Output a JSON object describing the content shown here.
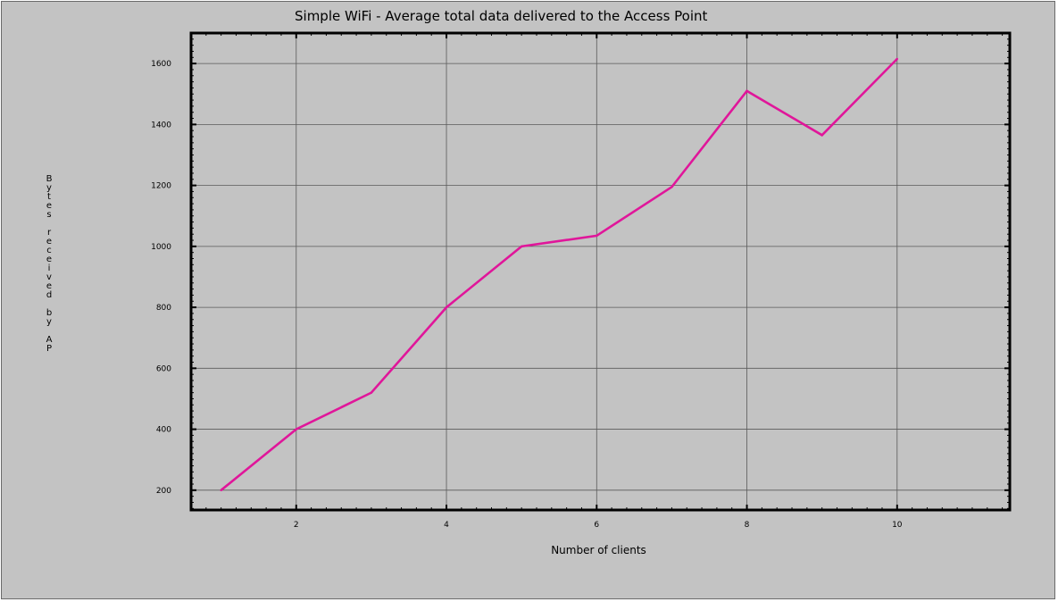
{
  "chart_data": {
    "type": "line",
    "title": "Simple WiFi - Average total data delivered to the Access Point",
    "xlabel": "Number of clients",
    "ylabel": "Bytes received by AP",
    "xlim": [
      0.6,
      11.5
    ],
    "ylim": [
      135,
      1700
    ],
    "x_ticks": [
      2,
      4,
      6,
      8,
      10
    ],
    "y_ticks": [
      200,
      400,
      600,
      800,
      1000,
      1200,
      1400,
      1600
    ],
    "grid": true,
    "legend": "none",
    "series": [
      {
        "color": "#e0169a",
        "x": [
          1,
          2,
          3,
          4,
          5,
          6,
          7,
          8,
          9,
          10
        ],
        "y": [
          200,
          400,
          520,
          800,
          1000,
          1035,
          1195,
          1510,
          1365,
          1615
        ]
      }
    ]
  },
  "colors": {
    "background": "#c3c3c3",
    "grid": "#5a5a5a",
    "axis": "#000000",
    "series": "#e0169a"
  }
}
